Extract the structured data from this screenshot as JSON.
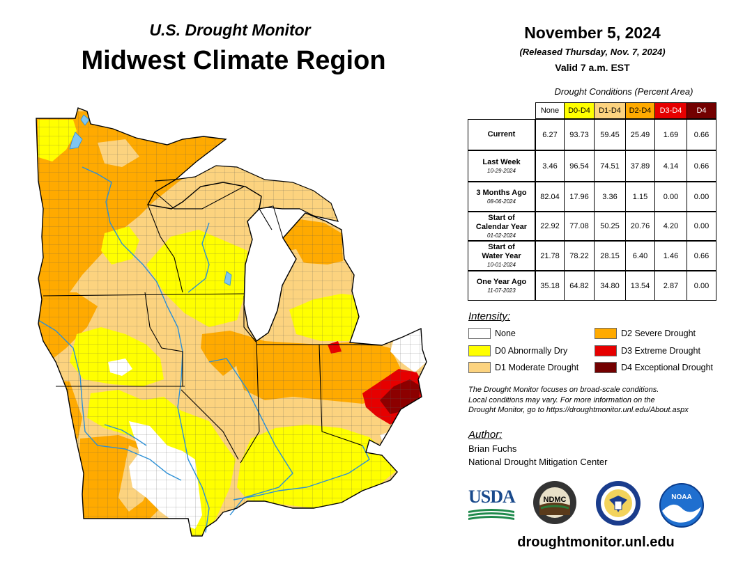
{
  "header": {
    "subtitle": "U.S. Drought Monitor",
    "title": "Midwest Climate Region",
    "date": "November 5, 2024",
    "released": "(Released Thursday, Nov. 7, 2024)",
    "valid": "Valid 7 a.m. EST"
  },
  "conditions": {
    "caption": "Drought Conditions (Percent Area)",
    "columns": [
      {
        "label": "None",
        "color": "#ffffff"
      },
      {
        "label": "D0-D4",
        "color": "#ffff00"
      },
      {
        "label": "D1-D4",
        "color": "#fcd37f"
      },
      {
        "label": "D2-D4",
        "color": "#ffaa00"
      },
      {
        "label": "D3-D4",
        "color": "#e60000",
        "text_color": "#ffffff"
      },
      {
        "label": "D4",
        "color": "#730000",
        "text_color": "#ffffff"
      }
    ],
    "rows": [
      {
        "label": [
          "Current"
        ],
        "date": "",
        "values": [
          "6.27",
          "93.73",
          "59.45",
          "25.49",
          "1.69",
          "0.66"
        ]
      },
      {
        "label": [
          "Last Week"
        ],
        "date": "10-29-2024",
        "values": [
          "3.46",
          "96.54",
          "74.51",
          "37.89",
          "4.14",
          "0.66"
        ]
      },
      {
        "label": [
          "3 Months Ago"
        ],
        "date": "08-06-2024",
        "values": [
          "82.04",
          "17.96",
          "3.36",
          "1.15",
          "0.00",
          "0.00"
        ]
      },
      {
        "label": [
          "Start of",
          "Calendar Year"
        ],
        "date": "01-02-2024",
        "values": [
          "22.92",
          "77.08",
          "50.25",
          "20.76",
          "4.20",
          "0.00"
        ]
      },
      {
        "label": [
          "Start of",
          "Water Year"
        ],
        "date": "10-01-2024",
        "values": [
          "21.78",
          "78.22",
          "28.15",
          "6.40",
          "1.46",
          "0.66"
        ]
      },
      {
        "label": [
          "One Year Ago"
        ],
        "date": "11-07-2023",
        "values": [
          "35.18",
          "64.82",
          "34.80",
          "13.54",
          "2.87",
          "0.00"
        ]
      }
    ]
  },
  "legend": {
    "title": "Intensity:",
    "items": [
      {
        "label": "None",
        "color": "#ffffff"
      },
      {
        "label": "D0 Abnormally Dry",
        "color": "#ffff00"
      },
      {
        "label": "D1 Moderate Drought",
        "color": "#fcd37f"
      },
      {
        "label": "D2 Severe Drought",
        "color": "#ffaa00"
      },
      {
        "label": "D3 Extreme Drought",
        "color": "#e60000"
      },
      {
        "label": "D4 Exceptional Drought",
        "color": "#730000"
      }
    ]
  },
  "note": {
    "lines": [
      "The Drought Monitor focuses on broad-scale conditions.",
      "Local conditions may vary. For more information on the",
      "Drought Monitor, go to https://droughtmonitor.unl.edu/About.aspx"
    ]
  },
  "author": {
    "title": "Author:",
    "name": "Brian Fuchs",
    "org": "National Drought Mitigation Center"
  },
  "logos": {
    "usda": "USDA",
    "ndmc": "NDMC",
    "noaa": "NOAA",
    "commerce_icon": "eagle-seal-icon"
  },
  "website": "droughtmonitor.unl.edu",
  "map": {
    "colors": {
      "none": "#ffffff",
      "d0": "#ffff00",
      "d1": "#fcd37f",
      "d2": "#ffaa00",
      "d3": "#e60000",
      "d4": "#730000",
      "water": "#2b8fd6"
    }
  }
}
